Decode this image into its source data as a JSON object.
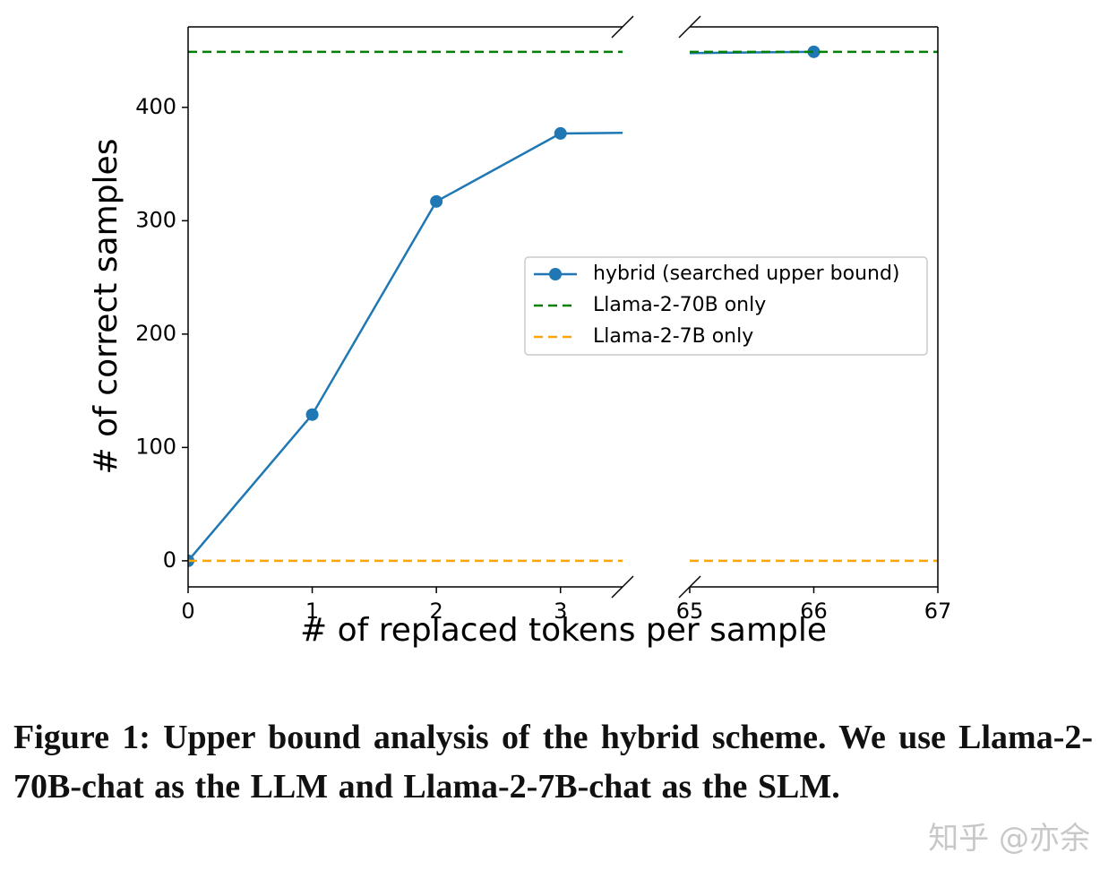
{
  "chart_data": {
    "type": "line",
    "xlabel": "# of replaced tokens per sample",
    "ylabel": "# of correct samples",
    "xlim": [
      [
        0,
        3.5
      ],
      [
        65,
        67
      ]
    ],
    "xticks": [
      [
        0,
        1,
        2,
        3
      ],
      [
        65,
        66,
        67
      ]
    ],
    "ylim": [
      -23,
      471
    ],
    "yticks": [
      0,
      100,
      200,
      300,
      400
    ],
    "legend": "center right",
    "series": [
      {
        "name": "hybrid (searched upper bound)",
        "color": "#1f77b4",
        "linestyle": "solid",
        "marker": "o",
        "x": [
          0,
          1,
          2,
          3,
          66
        ],
        "values": [
          0,
          129,
          317,
          377,
          449
        ]
      },
      {
        "name": "Llama-2-70B only",
        "color": "#008000",
        "linestyle": "dashed",
        "y": 449
      },
      {
        "name": "Llama-2-7B only",
        "color": "#ffa500",
        "linestyle": "dashed",
        "y": 0
      }
    ]
  },
  "caption": "Figure 1: Upper bound analysis of the hybrid scheme. We use Llama-2-70B-chat as the LLM and Llama-2-7B-chat as the SLM.",
  "watermark": "知乎 @亦余"
}
